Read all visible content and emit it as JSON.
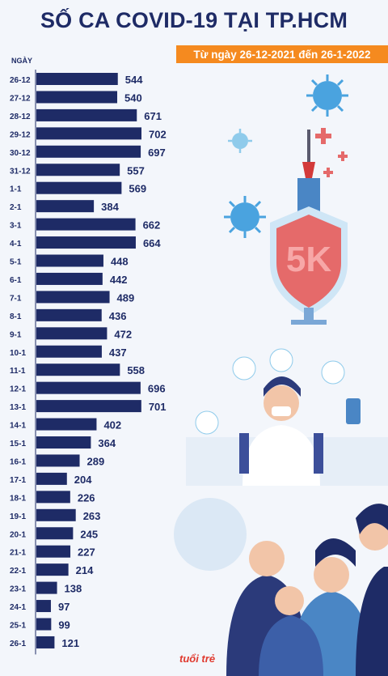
{
  "header": {
    "title": "SỐ CA COVID-19 TẠI TP.HCM",
    "subtitle": "Từ ngày 26-12-2021 đến 26-1-2022",
    "y_header": "NGÀY"
  },
  "logo": {
    "text": "tuổi trẻ"
  },
  "illustration": {
    "shield_text": "5K"
  },
  "colors": {
    "bar": "#1e2b66",
    "accent": "#f58a1f",
    "shield": "#e56a6a"
  },
  "chart_data": {
    "type": "bar",
    "orientation": "horizontal",
    "title": "SỐ CA COVID-19 TẠI TP.HCM",
    "subtitle": "Từ ngày 26-12-2021 đến 26-1-2022",
    "ylabel": "NGÀY",
    "categories": [
      "26-12",
      "27-12",
      "28-12",
      "29-12",
      "30-12",
      "31-12",
      "1-1",
      "2-1",
      "3-1",
      "4-1",
      "5-1",
      "6-1",
      "7-1",
      "8-1",
      "9-1",
      "10-1",
      "11-1",
      "12-1",
      "13-1",
      "14-1",
      "15-1",
      "16-1",
      "17-1",
      "18-1",
      "19-1",
      "20-1",
      "21-1",
      "22-1",
      "23-1",
      "24-1",
      "25-1",
      "26-1"
    ],
    "values": [
      544,
      540,
      671,
      702,
      697,
      557,
      569,
      384,
      662,
      664,
      448,
      442,
      489,
      436,
      472,
      437,
      558,
      696,
      701,
      402,
      364,
      289,
      204,
      226,
      263,
      245,
      227,
      214,
      138,
      97,
      99,
      121
    ],
    "xlim": [
      0,
      702
    ],
    "grid": false
  }
}
